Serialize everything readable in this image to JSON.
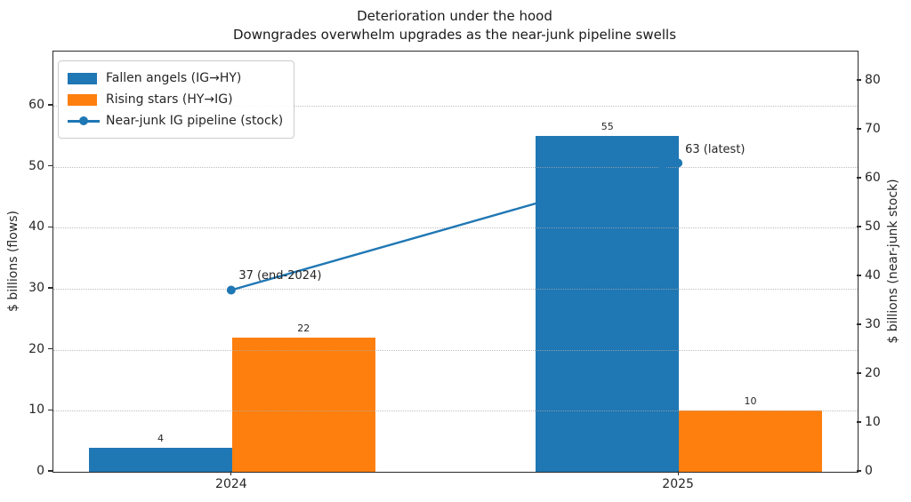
{
  "title": "Deterioration under the hood",
  "subtitle": "Downgrades overwhelm upgrades as the near-junk pipeline swells",
  "colors": {
    "blue": "#1f77b4",
    "orange": "#ff7f0e",
    "grid": "#aaaaaa",
    "spine": "#2b2b2b",
    "text": "#262626"
  },
  "axes": {
    "left": {
      "label": "$ billions (flows)",
      "ticks": [
        0,
        10,
        20,
        30,
        40,
        50,
        60
      ],
      "ylim": [
        0,
        68.9
      ]
    },
    "right": {
      "label": "$ billions (near-junk stock)",
      "ticks": [
        0,
        10,
        20,
        30,
        40,
        50,
        60,
        70,
        80
      ],
      "ylim": [
        0,
        86
      ]
    },
    "x": {
      "categories": [
        "2024",
        "2025"
      ]
    }
  },
  "legend": {
    "items": [
      {
        "type": "patch",
        "color": "#1f77b4",
        "label": "Fallen angels (IG→HY)"
      },
      {
        "type": "patch",
        "color": "#ff7f0e",
        "label": "Rising stars (HY→IG)"
      },
      {
        "type": "line",
        "color": "#1f77b4",
        "label": "Near-junk IG pipeline (stock)"
      }
    ]
  },
  "chart_data": {
    "type": "bar+line",
    "categories": [
      "2024",
      "2025"
    ],
    "series": [
      {
        "name": "Fallen angels (IG→HY)",
        "type": "bar",
        "axis": "left",
        "color": "#1f77b4",
        "values": [
          4,
          55
        ],
        "labels": [
          "4",
          "55"
        ]
      },
      {
        "name": "Rising stars (HY→IG)",
        "type": "bar",
        "axis": "left",
        "color": "#ff7f0e",
        "values": [
          22,
          10
        ],
        "labels": [
          "22",
          "10"
        ]
      },
      {
        "name": "Near-junk IG pipeline (stock)",
        "type": "line",
        "axis": "right",
        "color": "#1f77b4",
        "values": [
          37,
          63
        ],
        "annotations": [
          "37 (end-2024)",
          "63 (latest)"
        ]
      }
    ],
    "title": "Deterioration under the hood",
    "subtitle": "Downgrades overwhelm upgrades as the near-junk pipeline swells",
    "xlabel": "",
    "ylabel_left": "$ billions (flows)",
    "ylabel_right": "$ billions (near-junk stock)",
    "grid": "horizontal-dotted",
    "legend_position": "upper-left"
  }
}
